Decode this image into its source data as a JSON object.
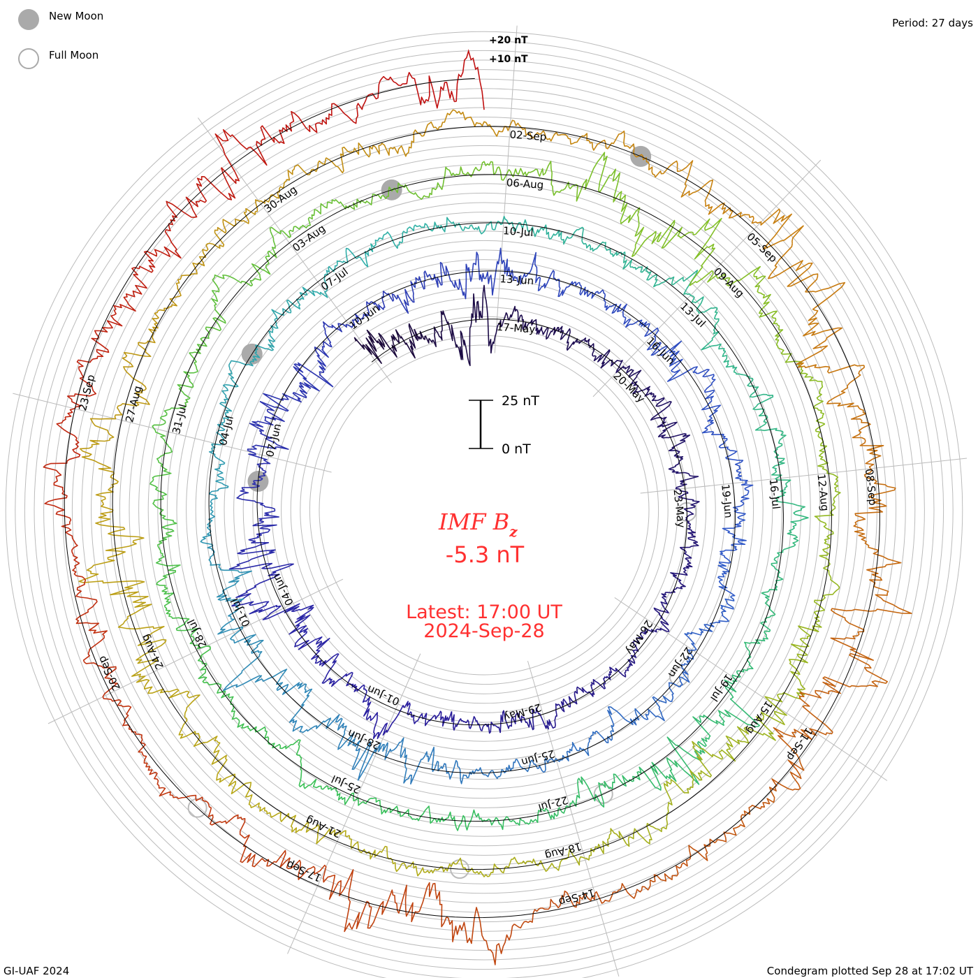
{
  "chart_data": {
    "type": "line",
    "subtype": "condegram-spiral",
    "title": "IMF B",
    "title_sub": "z",
    "current_value": "-5.3 nT",
    "latest_label": "Latest: 17:00 UT",
    "latest_date": "2024-Sep-28",
    "period_label": "Period: 27 days",
    "period_days": 27,
    "start": "2024-05-13T22:00:00Z",
    "end": "2024-09-28T17:00:00Z",
    "scale_bar": {
      "top_label": "25 nT",
      "bottom_label": "0 nT",
      "value_nT": 25
    },
    "ring_ticks": [
      "+20 nT",
      "+10 nT"
    ],
    "grid_step_nT": 5,
    "legend": [
      {
        "label": "New Moon",
        "style": "filled"
      },
      {
        "label": "Full Moon",
        "style": "open"
      }
    ],
    "new_moons": [
      "2024-06-06",
      "2024-07-05",
      "2024-08-04",
      "2024-09-03"
    ],
    "full_moons": [
      "2024-05-23",
      "2024-06-22",
      "2024-07-21",
      "2024-08-19",
      "2024-09-18"
    ],
    "date_labels": [
      "17-May",
      "20-May",
      "23-May",
      "26-May",
      "29-May",
      "01-Jun",
      "04-Jun",
      "07-Jun",
      "10-Jun",
      "13-Jun",
      "16-Jun",
      "19-Jun",
      "22-Jun",
      "25-Jun",
      "28-Jun",
      "01-Jul",
      "04-Jul",
      "07-Jul",
      "10-Jul",
      "13-Jul",
      "16-Jul",
      "19-Jul",
      "22-Jul",
      "25-Jul",
      "28-Jul",
      "31-Jul",
      "03-Aug",
      "06-Aug",
      "09-Aug",
      "12-Aug",
      "15-Aug",
      "18-Aug",
      "21-Aug",
      "24-Aug",
      "27-Aug",
      "30-Aug",
      "02-Sep",
      "05-Sep",
      "08-Sep",
      "11-Sep",
      "14-Sep",
      "17-Sep",
      "20-Sep",
      "23-Sep"
    ],
    "label_first_date": "2024-05-17",
    "label_step_days": 3,
    "color_stops": [
      {
        "date": "2024-05-14",
        "color": "#1a0838"
      },
      {
        "date": "2024-06-01",
        "color": "#2a1ea0"
      },
      {
        "date": "2024-06-20",
        "color": "#3058c8"
      },
      {
        "date": "2024-07-08",
        "color": "#30b0a8"
      },
      {
        "date": "2024-07-25",
        "color": "#38c058"
      },
      {
        "date": "2024-08-08",
        "color": "#80c028"
      },
      {
        "date": "2024-08-22",
        "color": "#b8a818"
      },
      {
        "date": "2024-09-05",
        "color": "#c88010"
      },
      {
        "date": "2024-09-15",
        "color": "#c04810"
      },
      {
        "date": "2024-09-28",
        "color": "#c01010"
      }
    ],
    "activity_nT_daily_std": [
      9,
      6,
      10,
      4,
      4,
      3,
      3,
      4,
      4,
      3,
      4,
      3,
      3,
      3,
      3,
      5,
      3,
      3,
      4,
      4,
      6,
      8,
      7,
      4,
      8,
      7,
      4,
      3,
      5,
      8,
      8,
      3,
      4,
      6,
      4,
      3,
      3,
      4,
      4,
      3,
      4,
      3,
      3,
      3,
      6,
      8,
      5,
      6,
      5,
      3,
      3,
      3,
      3,
      3,
      3,
      3,
      3,
      3,
      3,
      4,
      3,
      3,
      3,
      4,
      3,
      3,
      5,
      8,
      6,
      3,
      3,
      3,
      3,
      3,
      3,
      4,
      4,
      3,
      3,
      4,
      4,
      3,
      3,
      3,
      4,
      8,
      8,
      5,
      3,
      3,
      3,
      3,
      5,
      8,
      7,
      4,
      3,
      3,
      3,
      4,
      4,
      5,
      7,
      8,
      6,
      4,
      3,
      3,
      3,
      4,
      3,
      3,
      4,
      5,
      8,
      9,
      5,
      6,
      7,
      9,
      6,
      3,
      3,
      4,
      9,
      10,
      5,
      4,
      3,
      4,
      4,
      4,
      5,
      6,
      7,
      8,
      4,
      8
    ]
  },
  "footer": {
    "left": "GI-UAF 2024",
    "right": "Condegram plotted Sep 28 at 17:02 UT"
  }
}
